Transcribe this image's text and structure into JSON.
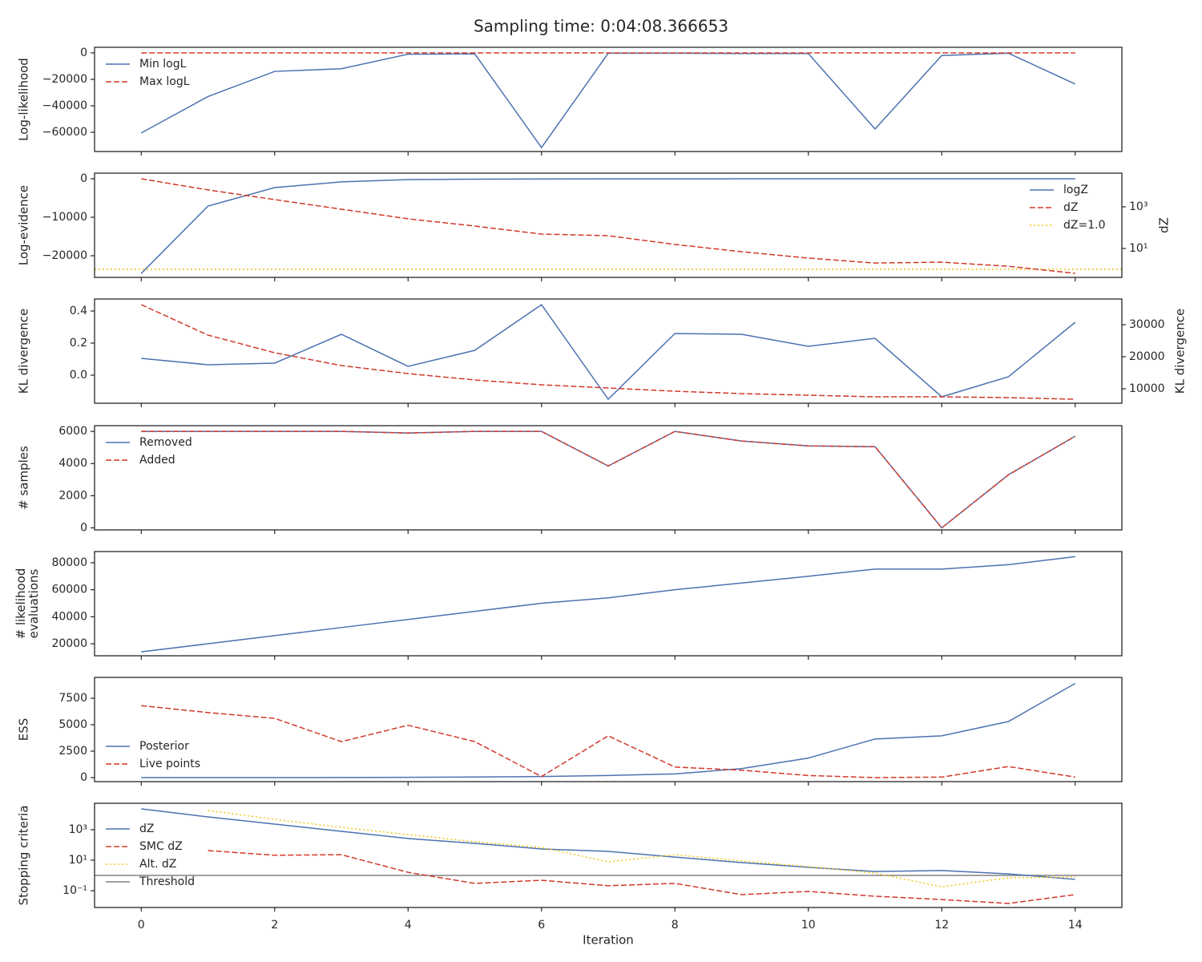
{
  "title": "Sampling time: 0:04:08.366653",
  "xlabel": "Iteration",
  "x": [
    0,
    1,
    2,
    3,
    4,
    5,
    6,
    7,
    8,
    9,
    10,
    11,
    12,
    13,
    14
  ],
  "xlim": [
    -0.7,
    14.7
  ],
  "xticks": [
    0,
    2,
    4,
    6,
    8,
    10,
    12,
    14
  ],
  "chart_data": [
    {
      "type": "line",
      "ylabel": "Log-likelihood",
      "legend": "upper left",
      "ylim": [
        -74500,
        4200
      ],
      "yticks": [
        0,
        {
          "value": -20000,
          "label": "−20000"
        },
        {
          "value": -40000,
          "label": "−40000"
        },
        {
          "value": -60000,
          "label": "−60000"
        }
      ],
      "series": [
        {
          "name": "Min logL",
          "color": "#4c72b0",
          "style": "solid",
          "values": [
            -60500,
            -33000,
            -14000,
            -12000,
            -1000,
            -800,
            -71500,
            -300,
            -300,
            -500,
            -500,
            -57500,
            -2000,
            -300,
            -23500
          ]
        },
        {
          "name": "Max logL",
          "color": "#d03a2f",
          "style": "dashed",
          "values": [
            0,
            0,
            0,
            0,
            0,
            0,
            0,
            0,
            0,
            0,
            0,
            0,
            0,
            0,
            0
          ]
        }
      ]
    },
    {
      "type": "line",
      "ylabel": "Log-evidence",
      "y2label": "dZ",
      "legend": "upper right",
      "ylim": [
        -25625,
        1458
      ],
      "yticks": [
        0,
        {
          "value": -10000,
          "label": "−10000"
        },
        {
          "value": -20000,
          "label": "−20000"
        }
      ],
      "y2scale": "log",
      "y2lim": [
        0.41,
        41200
      ],
      "y2ticks": [
        {
          "value": 1000,
          "label": "10³"
        },
        {
          "value": 10,
          "label": "10¹"
        }
      ],
      "series": [
        {
          "name": "logZ",
          "color": "#4c72b0",
          "style": "solid",
          "values": [
            -24600,
            -7100,
            -2300,
            -800,
            -200,
            -100,
            -50,
            -30,
            -20,
            -10,
            -5,
            -3,
            -2,
            -1,
            -1
          ]
        },
        {
          "name": "dZ",
          "color": "#d03a2f",
          "style": "dashed",
          "axis": "y2",
          "values": [
            22200,
            6460,
            2220,
            767,
            265,
            119,
            49,
            41,
            15.6,
            7.0,
            3.45,
            2.0,
            2.2,
            1.4,
            0.64
          ]
        }
      ],
      "hlines": [
        {
          "name": "dZ=1.0",
          "color": "#f5c518",
          "style": "dotted",
          "axis": "y2",
          "value": 1.0
        }
      ]
    },
    {
      "type": "line",
      "ylabel": "KL divergence",
      "y2label": "KL divergence",
      "legend": "none",
      "ylim": [
        -0.175,
        0.475
      ],
      "yticks": [
        0.4,
        0.2,
        {
          "value": 0,
          "label": "0.0"
        }
      ],
      "y2lim": [
        5500,
        38000
      ],
      "y2ticks": [
        30000,
        20000,
        10000
      ],
      "series": [
        {
          "color": "#4c72b0",
          "style": "solid",
          "values": [
            0.105,
            0.065,
            0.075,
            0.255,
            0.055,
            0.155,
            0.44,
            -0.15,
            0.26,
            0.255,
            0.18,
            0.23,
            -0.135,
            -0.01,
            0.33
          ]
        },
        {
          "color": "#d03a2f",
          "style": "dashed",
          "axis": "y2",
          "values": [
            36250,
            26750,
            21250,
            17250,
            14750,
            12750,
            11250,
            10250,
            9250,
            8500,
            8000,
            7500,
            7500,
            7250,
            6750
          ]
        }
      ]
    },
    {
      "type": "line",
      "ylabel": "# samples",
      "legend": "upper left",
      "ylim": [
        -127,
        6356
      ],
      "yticks": [
        0,
        2000,
        4000,
        6000
      ],
      "series": [
        {
          "name": "Removed",
          "color": "#4c72b0",
          "style": "solid",
          "values": [
            6000,
            6000,
            6000,
            6000,
            5900,
            6000,
            6000,
            3850,
            6000,
            5400,
            5100,
            5050,
            0,
            3300,
            5700
          ]
        },
        {
          "name": "Added",
          "color": "#d03a2f",
          "style": "dashed",
          "values": [
            6000,
            6000,
            6000,
            6000,
            5900,
            6000,
            6000,
            3850,
            6000,
            5400,
            5100,
            5050,
            0,
            3300,
            5700
          ]
        }
      ]
    },
    {
      "type": "line",
      "ylabel": [
        "# likelihood",
        "evaluations"
      ],
      "legend": "none",
      "ylim": [
        11100,
        88300
      ],
      "yticks": [
        20000,
        40000,
        60000,
        80000
      ],
      "series": [
        {
          "color": "#4c72b0",
          "style": "solid",
          "values": [
            14000,
            20000,
            26000,
            32000,
            38000,
            44000,
            50000,
            54000,
            60000,
            65000,
            70000,
            75300,
            75300,
            78600,
            84500
          ]
        }
      ]
    },
    {
      "type": "line",
      "ylabel": "ESS",
      "legend": "lower left",
      "ylim": [
        -379,
        9470
      ],
      "yticks": [
        0,
        2500,
        5000,
        7500
      ],
      "series": [
        {
          "name": "Posterior",
          "color": "#4c72b0",
          "style": "solid",
          "values": [
            0,
            0,
            0,
            10,
            30,
            60,
            100,
            200,
            350,
            850,
            1850,
            3650,
            3950,
            5300,
            8900
          ]
        },
        {
          "name": "Live points",
          "color": "#d03a2f",
          "style": "dashed",
          "values": [
            6800,
            6150,
            5600,
            3400,
            4950,
            3400,
            100,
            3950,
            1000,
            700,
            200,
            0,
            50,
            1050,
            50
          ]
        }
      ]
    },
    {
      "type": "line",
      "ylabel": "Stopping criteria",
      "legend": "center left",
      "yscale": "log",
      "ylim": [
        0.00785,
        54600
      ],
      "yticks": [
        {
          "value": 1000,
          "label": "10³"
        },
        {
          "value": 10,
          "label": "10¹"
        },
        {
          "value": 0.1,
          "label": "10⁻¹"
        }
      ],
      "series": [
        {
          "name": "dZ",
          "color": "#4c72b0",
          "style": "solid",
          "values": [
            23400,
            6950,
            2330,
            790,
            265,
            127,
            55,
            38,
            16,
            7,
            3.4,
            1.8,
            2.1,
            1.26,
            0.55
          ]
        },
        {
          "name": "SMC dZ",
          "color": "#d03a2f",
          "style": "dashed",
          "values": [
            null,
            43,
            21,
            23,
            1.6,
            0.3,
            0.48,
            0.21,
            0.3,
            0.055,
            0.089,
            0.043,
            0.026,
            0.0145,
            0.055
          ]
        },
        {
          "name": "Alt. dZ",
          "color": "#f5c518",
          "style": "dotted",
          "values": [
            null,
            18300,
            4800,
            1440,
            480,
            162,
            69,
            7.8,
            23,
            8.9,
            3.8,
            1.4,
            0.18,
            0.69,
            0.79
          ]
        }
      ],
      "hlines": [
        {
          "name": "Threshold",
          "color": "#808080",
          "style": "solid",
          "value": 1.0
        }
      ]
    }
  ]
}
